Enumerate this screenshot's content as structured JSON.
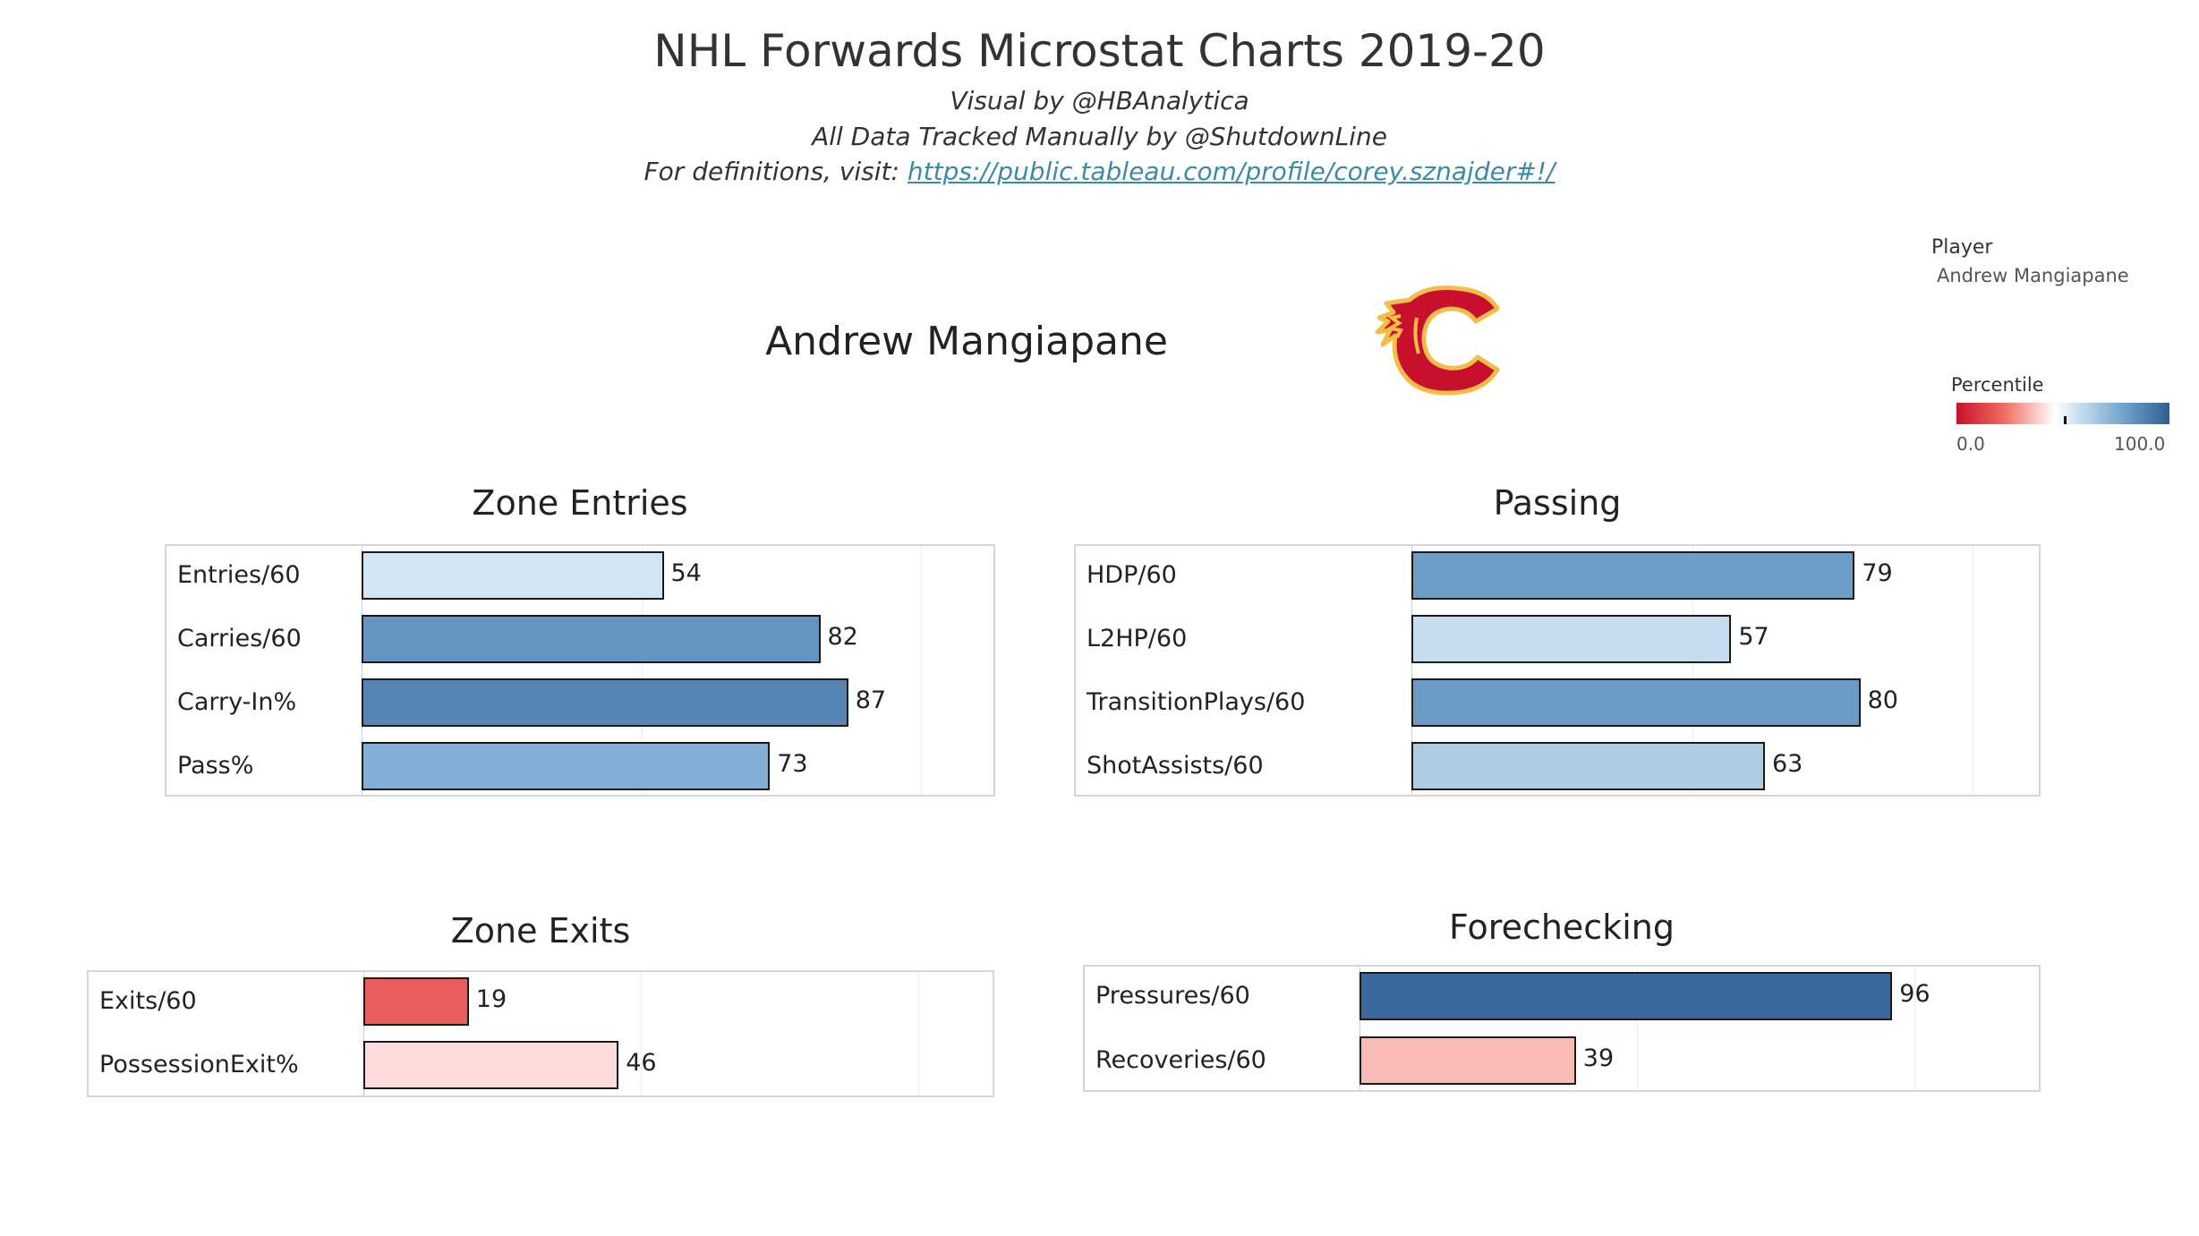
{
  "header": {
    "title": "NHL Forwards Microstat Charts 2019-20",
    "subtitle_1": "Visual by @HBAnalytica",
    "subtitle_2": "All Data Tracked Manually by @ShutdownLine",
    "subtitle_3_prefix": "For definitions, visit: ",
    "subtitle_3_link": "https://public.tableau.com/profile/corey.sznajder#!/"
  },
  "player": {
    "name": "Andrew Mangiapane",
    "team_logo": "calgary-flames-logo"
  },
  "filter": {
    "label": "Player",
    "value": "Andrew Mangiapane"
  },
  "legend": {
    "title": "Percentile",
    "min_label": "0.0",
    "max_label": "100.0",
    "low_color": "#c8102e",
    "mid_color": "#ffffff",
    "high_color": "#2f5d92"
  },
  "chart_data": [
    {
      "type": "bar",
      "orientation": "horizontal",
      "title": "Zone Entries",
      "categories": [
        "Entries/60",
        "Carries/60",
        "Carry-In%",
        "Pass%"
      ],
      "values": [
        54,
        82,
        87,
        73
      ],
      "xlim": [
        0,
        100
      ],
      "grid": true
    },
    {
      "type": "bar",
      "orientation": "horizontal",
      "title": "Passing",
      "categories": [
        "HDP/60",
        "L2HP/60",
        "TransitionPlays/60",
        "ShotAssists/60"
      ],
      "values": [
        79,
        57,
        80,
        63
      ],
      "xlim": [
        0,
        100
      ],
      "grid": true
    },
    {
      "type": "bar",
      "orientation": "horizontal",
      "title": "Zone Exits",
      "categories": [
        "Exits/60",
        "PossessionExit%"
      ],
      "values": [
        19,
        46
      ],
      "xlim": [
        0,
        100
      ],
      "grid": true
    },
    {
      "type": "bar",
      "orientation": "horizontal",
      "title": "Forechecking",
      "categories": [
        "Pressures/60",
        "Recoveries/60"
      ],
      "values": [
        96,
        39
      ],
      "xlim": [
        0,
        100
      ],
      "grid": true
    }
  ]
}
